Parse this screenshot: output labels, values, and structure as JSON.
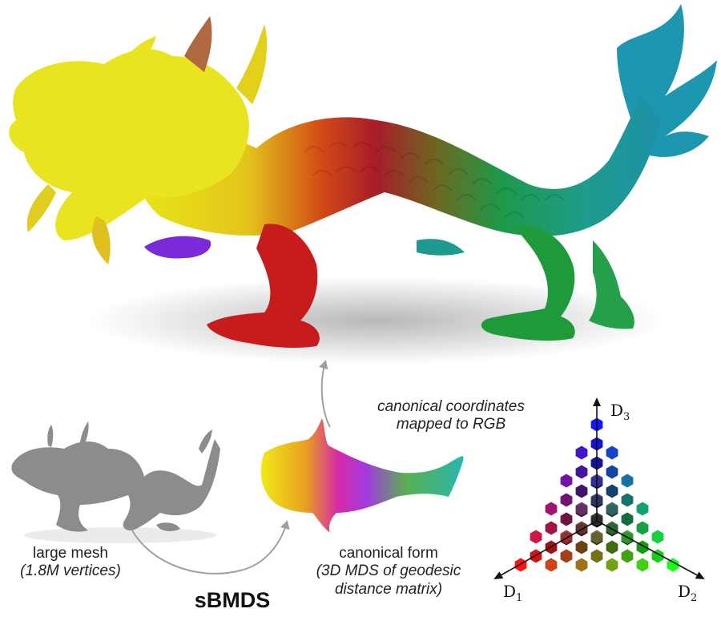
{
  "labels": {
    "large_mesh_line1": "large mesh",
    "large_mesh_line2": "(1.8M vertices)",
    "sbmds": "sBMDS",
    "canonical_line1": "canonical form",
    "canonical_line2": "(3D MDS of geodesic",
    "canonical_line3": "distance matrix)",
    "mapped_line1": "canonical coordinates",
    "mapped_line2": "mapped to RGB"
  },
  "axes": {
    "d1": {
      "letter": "D",
      "sub": "1"
    },
    "d2": {
      "letter": "D",
      "sub": "2"
    },
    "d3": {
      "letter": "D",
      "sub": "3"
    }
  },
  "colors": {
    "d1_red": "#e8101c",
    "d2_green": "#1fb61f",
    "d3_blue": "#1010d8",
    "yellow": "#f2ea18",
    "magenta": "#e81ce0",
    "cyan": "#22c6e6",
    "mesh_gray": "#8a8a8a",
    "arrow_gray": "#9a9a9a"
  },
  "icons": [
    "dragon-colored-render",
    "dragon-gray-mesh",
    "canonical-form-shape",
    "rgb-color-tetrahedron"
  ]
}
